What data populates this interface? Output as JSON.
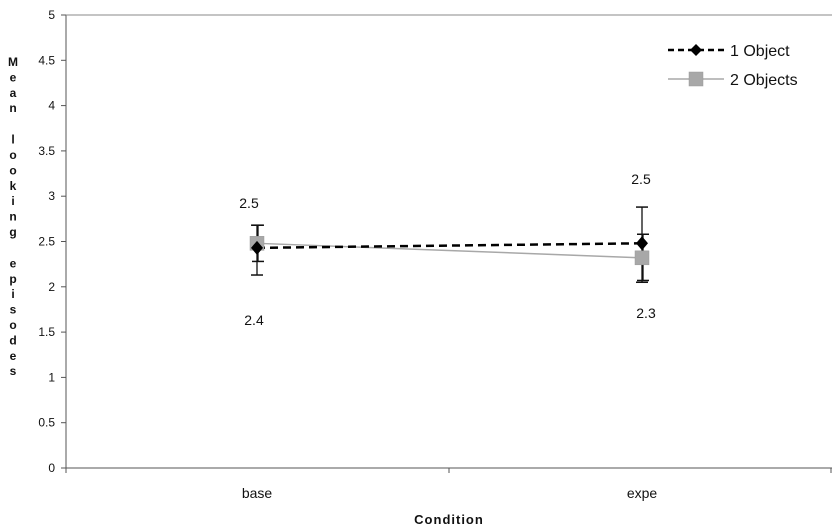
{
  "chart_data": {
    "type": "line",
    "xlabel": "Condition",
    "ylabel": "Mean looking episodes",
    "categories": [
      "base",
      "expe"
    ],
    "ylim": [
      0,
      5
    ],
    "yticks": [
      "0",
      "0.5",
      "1",
      "1.5",
      "2",
      "2.5",
      "3",
      "3.5",
      "4",
      "4.5",
      "5"
    ],
    "grid": false,
    "legend_position": "top-right",
    "series": [
      {
        "name": "1 Object",
        "values": [
          2.43,
          2.48
        ],
        "error_high": [
          2.68,
          2.88
        ],
        "error_low": [
          2.13,
          2.05
        ],
        "data_labels": [
          "2.4",
          "2.5"
        ],
        "color": "#000000",
        "marker": "diamond",
        "line_style": "dashed"
      },
      {
        "name": "2 Objects",
        "values": [
          2.48,
          2.32
        ],
        "error_high": [
          2.68,
          2.58
        ],
        "error_low": [
          2.28,
          2.07
        ],
        "data_labels": [
          "2.5",
          "2.3"
        ],
        "color": "#a8a8a8",
        "marker": "square",
        "line_style": "solid"
      }
    ]
  }
}
